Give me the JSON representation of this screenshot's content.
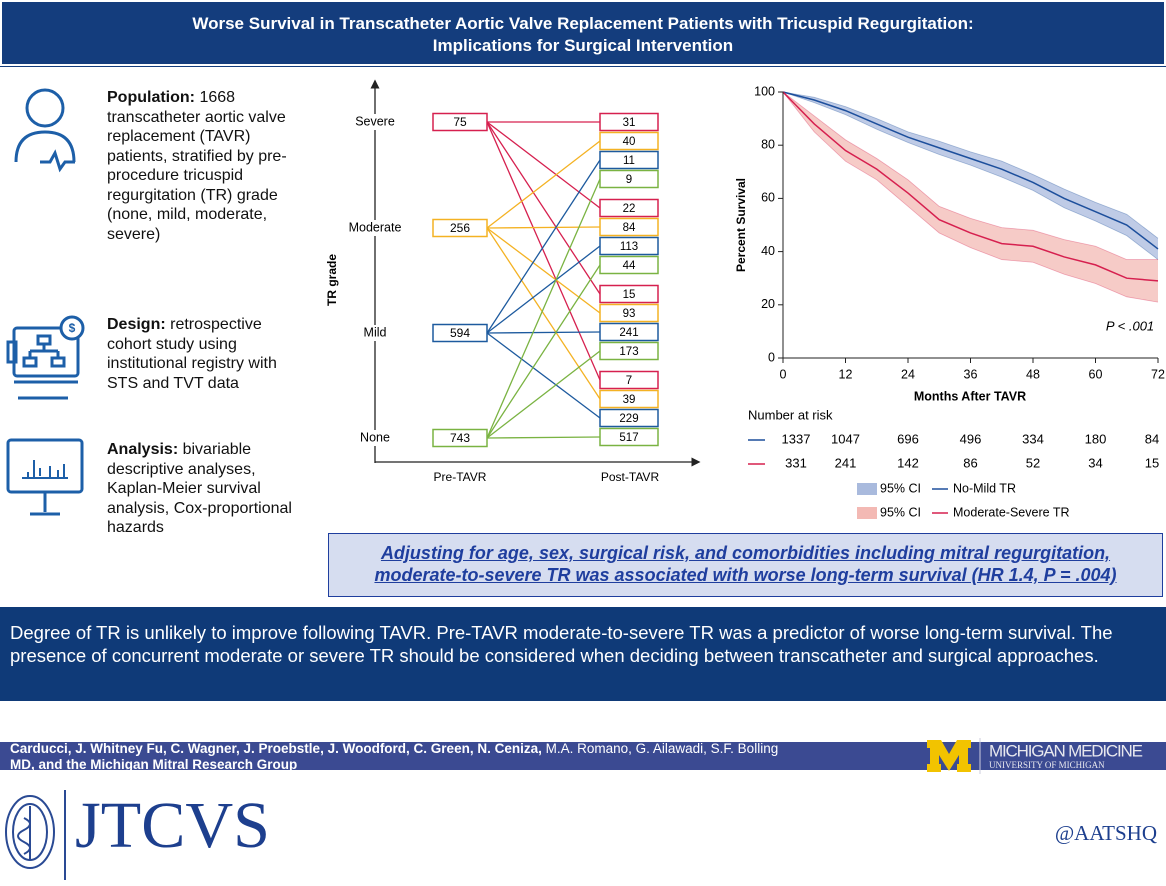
{
  "header": {
    "title_lines": [
      "Worse Survival in Transcatheter Aortic Valve Replacement Patients with Tricuspid Regurgitation:",
      "Implications for Surgical Intervention"
    ]
  },
  "population": {
    "label": "Population:",
    "text": "1668 transcatheter aortic valve replacement (TAVR) patients, stratified by pre-procedure tricuspid regurgitation (TR) grade (none, mild, moderate, severe)"
  },
  "design": {
    "label": "Design:",
    "text": "retrospective cohort study using institutional registry with STS and TVT data"
  },
  "analysis": {
    "label": "Analysis:",
    "text": "bivariable descriptive analyses, Kaplan-Meier survival analysis, Cox-proportional hazards"
  },
  "chart_data": [
    {
      "type": "flow",
      "y_label": "TR grade",
      "x_labels": [
        "Pre-TAVR",
        "Post-TAVR"
      ],
      "categories": [
        "Severe",
        "Moderate",
        "Mild",
        "None"
      ],
      "values": [
        75,
        256,
        594,
        743
      ],
      "series": [
        {
          "color": "#d6204f",
          "values": [
            31,
            22,
            15,
            7
          ]
        },
        {
          "color": "#f4b223",
          "values": [
            40,
            84,
            93,
            39
          ]
        },
        {
          "color": "#1d5a9e",
          "values": [
            11,
            113,
            241,
            229
          ]
        },
        {
          "color": "#7ab342",
          "values": [
            9,
            44,
            173,
            517
          ]
        }
      ]
    },
    {
      "type": "line",
      "y_label": "Percent Survival",
      "x_label": "Months After TAVR",
      "annotation": "P < .001",
      "ci_label": "95% CI",
      "x": [
        0,
        6,
        12,
        18,
        24,
        30,
        36,
        42,
        48,
        54,
        60,
        66,
        72
      ],
      "xlim": [
        0,
        72
      ],
      "ylim": [
        0,
        100
      ],
      "xticks": [
        0,
        12,
        24,
        36,
        48,
        60,
        72
      ],
      "yticks": [
        0,
        20,
        40,
        60,
        80,
        100
      ],
      "series": [
        {
          "name": "No-Mild TR",
          "color": "#1d4f9c",
          "band_color": "#a9badd",
          "values": [
            100,
            97,
            93,
            88,
            83,
            79,
            75,
            71,
            66,
            60,
            55,
            50,
            41
          ],
          "ci_lower": [
            100,
            96,
            91.5,
            86,
            81,
            76.5,
            72.5,
            68,
            63,
            56.5,
            51.5,
            46,
            37
          ],
          "ci_upper": [
            100,
            98,
            94.5,
            90,
            85,
            81.5,
            77.5,
            74,
            69,
            63.5,
            58.5,
            54,
            45
          ]
        },
        {
          "name": "Moderate-Severe TR",
          "color": "#d6204f",
          "band_color": "#f3b9b4",
          "values": [
            100,
            88,
            78,
            71,
            62,
            52,
            47,
            43,
            42,
            38,
            35,
            30,
            29
          ],
          "ci_lower": [
            100,
            85,
            74,
            67,
            57,
            47,
            41.5,
            37,
            36,
            31.5,
            28,
            23,
            21
          ],
          "ci_upper": [
            100,
            91,
            82,
            75,
            67,
            57,
            52.5,
            49,
            48,
            44.5,
            42,
            37,
            37
          ]
        }
      ],
      "risk_table": {
        "title": "Number at risk",
        "rows": [
          [
            1337,
            1047,
            696,
            496,
            334,
            180,
            84
          ],
          [
            331,
            241,
            142,
            86,
            52,
            34,
            15
          ]
        ]
      }
    }
  ],
  "highlight": [
    "Adjusting for age, sex, surgical risk, and comorbidities including mitral regurgitation,",
    "moderate-to-severe TR was associated with worse long-term survival (HR 1.4, P = .004)"
  ],
  "conclusion": "Degree of TR is unlikely to improve following TAVR. Pre-TAVR moderate-to-severe TR was a predictor of worse long-term survival. The presence of concurrent moderate or severe TR should be considered when deciding between transcatheter and surgical approaches.",
  "authors": {
    "part1": "Carducci, J. Whitney Fu, C. Wagner, J. Proebstle, J. Woodford, C. Green, N. Ceniza,",
    "part2": "M.A. Romano, G. Ailawadi, S.F. Bolling",
    "part3": "MD, and the Michigan Mitral Research Group"
  },
  "logos": {
    "michigan_name": "MICHIGAN MEDICINE",
    "michigan_sub": "UNIVERSITY OF MICHIGAN",
    "journal": "JTCVS",
    "handle": "@AATSHQ"
  }
}
